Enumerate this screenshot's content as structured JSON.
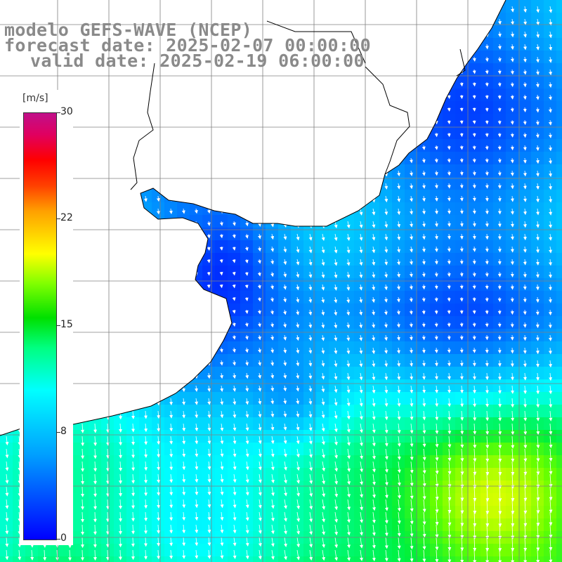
{
  "header": {
    "model": "modelo GEFS-WAVE (NCEP)",
    "forecast": "forecast date: 2025-02-07 00:00:00",
    "valid": "valid date: 2025-02-19 06:00:00"
  },
  "legend": {
    "unit": "[m/s]",
    "ticks": [
      {
        "label": "30",
        "value": 30
      },
      {
        "label": "22",
        "value": 22
      },
      {
        "label": "15",
        "value": 15
      },
      {
        "label": "8",
        "value": 8
      },
      {
        "label": "0",
        "value": 0
      }
    ]
  },
  "colors": {
    "land": "#ffffff",
    "coast": "#000000",
    "grid": "#808080",
    "arrows": "#ffffff",
    "title": "#8a8a8a"
  }
}
